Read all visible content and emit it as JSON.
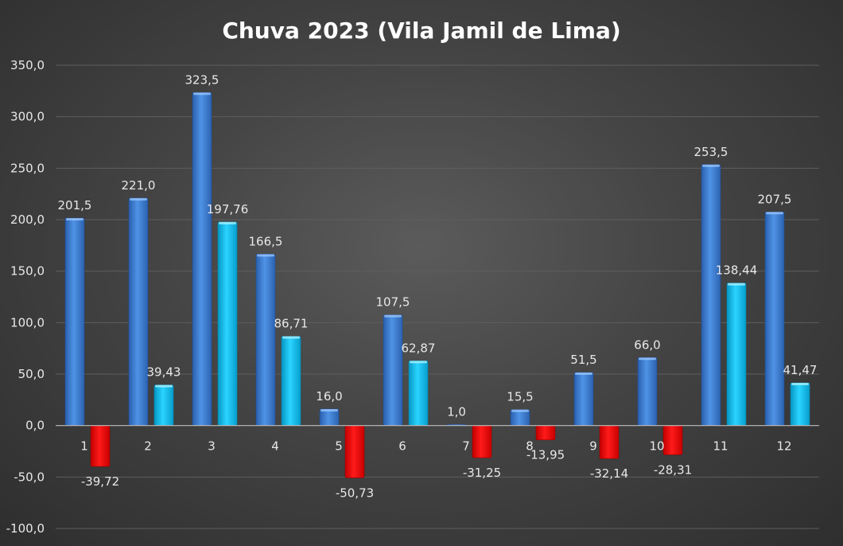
{
  "chart_data": {
    "type": "bar",
    "title": "Chuva 2023 (Vila Jamil de Lima)",
    "xlabel": "",
    "ylabel": "",
    "categories": [
      "1",
      "2",
      "3",
      "4",
      "5",
      "6",
      "7",
      "8",
      "9",
      "10",
      "11",
      "12"
    ],
    "series": [
      {
        "values": [
          201.5,
          221.0,
          323.5,
          166.5,
          16.0,
          107.5,
          1.0,
          15.5,
          51.5,
          66.0,
          253.5,
          207.5
        ],
        "labels": [
          "201,5",
          "221,0",
          "323,5",
          "166,5",
          "16,0",
          "107,5",
          "1,0",
          "15,5",
          "51,5",
          "66,0",
          "253,5",
          "207,5"
        ]
      },
      {
        "values": [
          -39.72,
          39.43,
          197.76,
          86.71,
          -50.73,
          62.87,
          -31.25,
          -13.95,
          -32.14,
          -28.31,
          138.44,
          41.47
        ],
        "labels": [
          "-39,72",
          "39,43",
          "197,76",
          "86,71",
          "-50,73",
          "62,87",
          "-31,25",
          "-13,95",
          "-32,14",
          "-28,31",
          "138,44",
          "41,47"
        ]
      }
    ],
    "ylim": [
      -100,
      350
    ],
    "yticks": [
      350,
      300,
      250,
      200,
      150,
      100,
      50,
      0,
      -50,
      -100
    ],
    "ytick_labels": [
      "350,0",
      "300,0",
      "250,0",
      "200,0",
      "150,0",
      "100,0",
      "50,0",
      "0,0",
      "-50,0",
      "-100,0"
    ],
    "grid": true,
    "legend": "none",
    "colors": {
      "series1": "#3d7fd6",
      "series2_positive": "#12c3f0",
      "series2_negative": "#ff0000",
      "gridline": "#5e5e5e",
      "zero_line": "#bdbdbd",
      "text": "#e8e8e8"
    }
  }
}
